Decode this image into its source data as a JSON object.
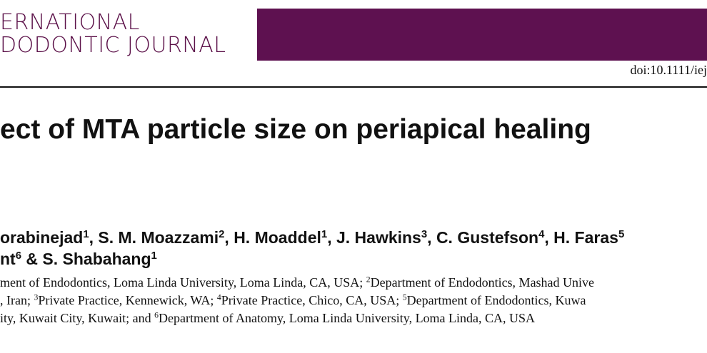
{
  "header": {
    "journal_lines": [
      "ERNATIONAL",
      "DODONTIC JOURNAL"
    ],
    "doi": "doi:10.1111/iej"
  },
  "title": "ect of MTA particle size on periapical healing",
  "authors": [
    [
      "orabinejad",
      {
        "sup": "1"
      },
      ", S. M. Moazzami",
      {
        "sup": "2"
      },
      ", H. Moaddel",
      {
        "sup": "1"
      },
      ", J. Hawkins",
      {
        "sup": "3"
      },
      ", C. Gustefson",
      {
        "sup": "4"
      },
      ", H. Faras",
      {
        "sup": "5"
      }
    ],
    [
      "nt",
      {
        "sup": "6"
      },
      " & S. Shabahang",
      {
        "sup": "1"
      }
    ]
  ],
  "affiliations": [
    [
      "ment of Endodontics, Loma Linda University, Loma Linda, CA, USA; ",
      {
        "sup": "2"
      },
      "Department of Endodontics, Mashad Unive"
    ],
    [
      ", Iran; ",
      {
        "sup": "3"
      },
      "Private Practice, Kennewick, WA; ",
      {
        "sup": "4"
      },
      "Private Practice, Chico, CA, USA; ",
      {
        "sup": "5"
      },
      "Department of Endodontics, Kuwa"
    ],
    [
      "ity, Kuwait City, Kuwait; and ",
      {
        "sup": "6"
      },
      "Department of Anatomy, Loma Linda University, Loma Linda, CA, USA"
    ]
  ]
}
